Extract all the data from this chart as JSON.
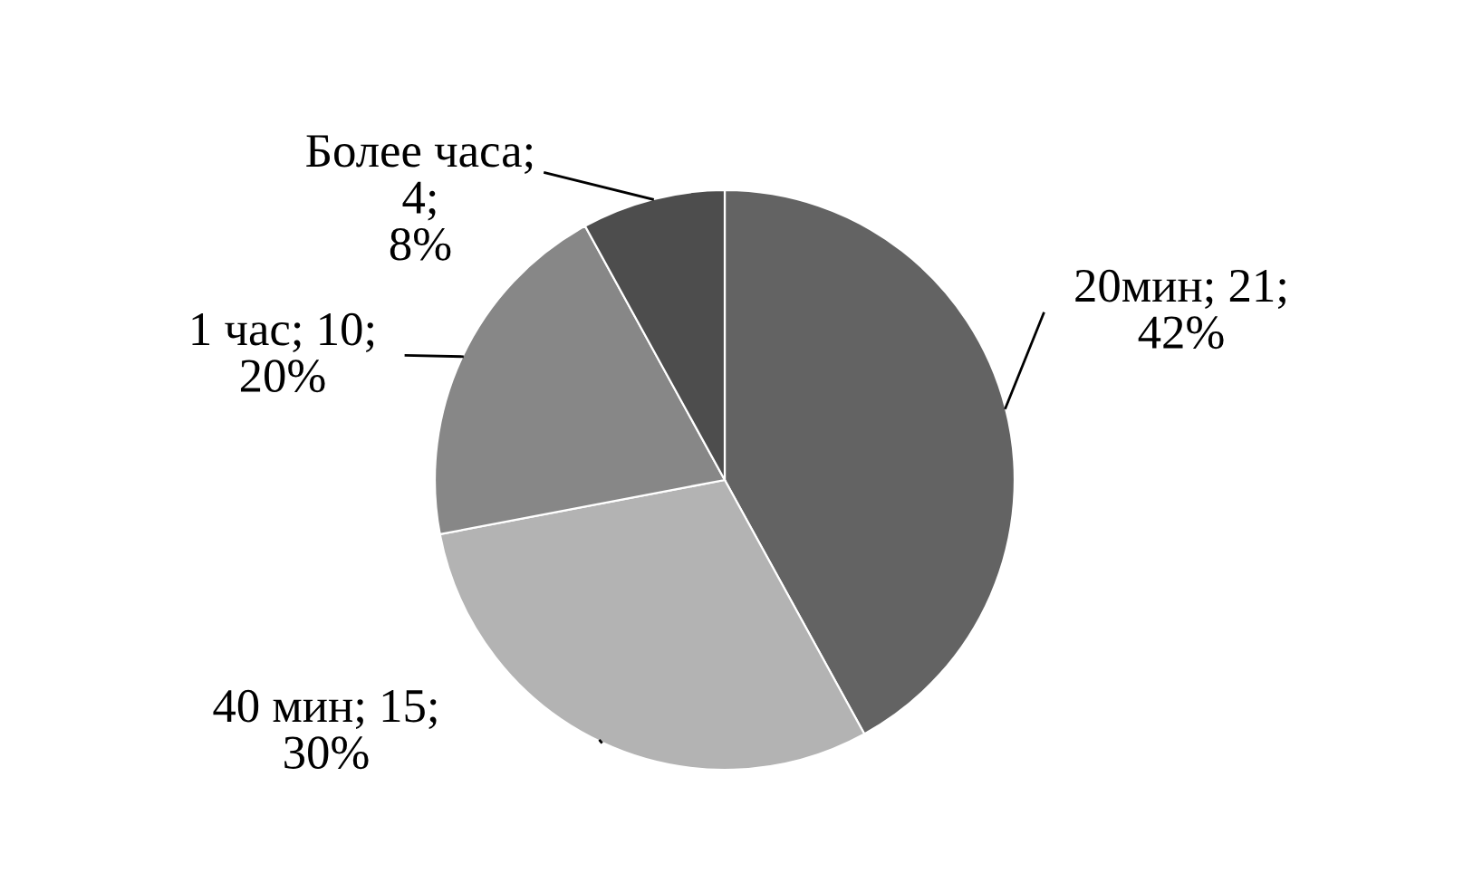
{
  "chart_data": {
    "type": "pie",
    "categories": [
      "20мин",
      "40 мин",
      "1 час",
      "Более часа"
    ],
    "values": [
      21,
      15,
      10,
      4
    ],
    "colors": [
      "#636363",
      "#b3b3b3",
      "#878787",
      "#4d4d4d"
    ],
    "value_labels": [
      "; 21;\n42%",
      "; 15;\n30%",
      "; 10;\n20%",
      ";\n4;\n8%"
    ],
    "legend": false
  }
}
